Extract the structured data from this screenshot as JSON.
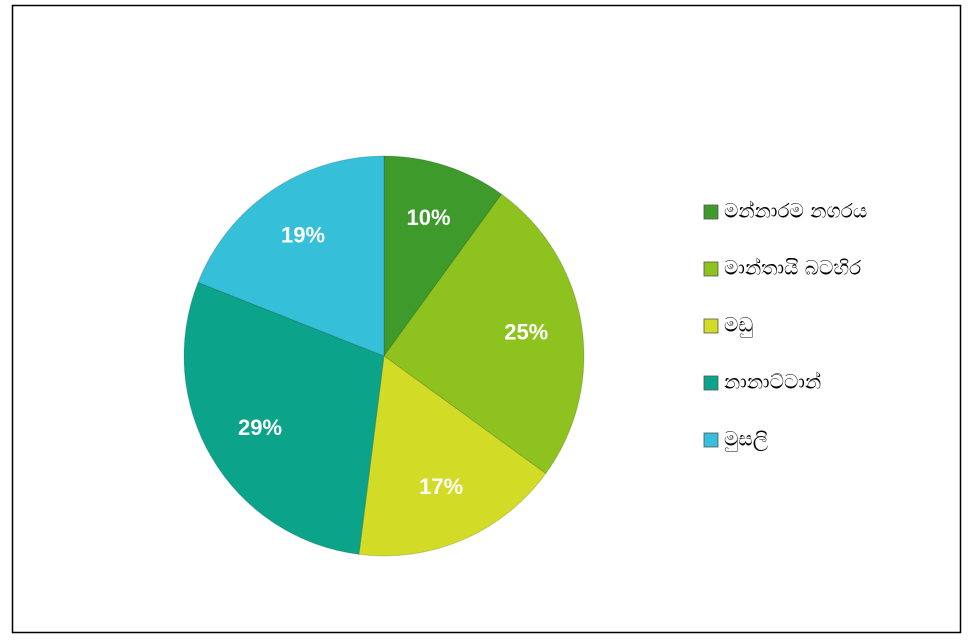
{
  "chart_data": {
    "type": "pie",
    "categories": [
      "මන්නාරම නගරය",
      "මාන්තායි බටහිර",
      "මඩු",
      "නානාට්ටාන්",
      "මුසලි"
    ],
    "values": [
      10,
      25,
      17,
      29,
      19
    ],
    "value_labels": [
      "10%",
      "25%",
      "17%",
      "29%",
      "19%"
    ],
    "colors": [
      "#3f9a2c",
      "#8ec21f",
      "#d2dc26",
      "#0ba48a",
      "#36bfd9"
    ],
    "legend": "right"
  }
}
